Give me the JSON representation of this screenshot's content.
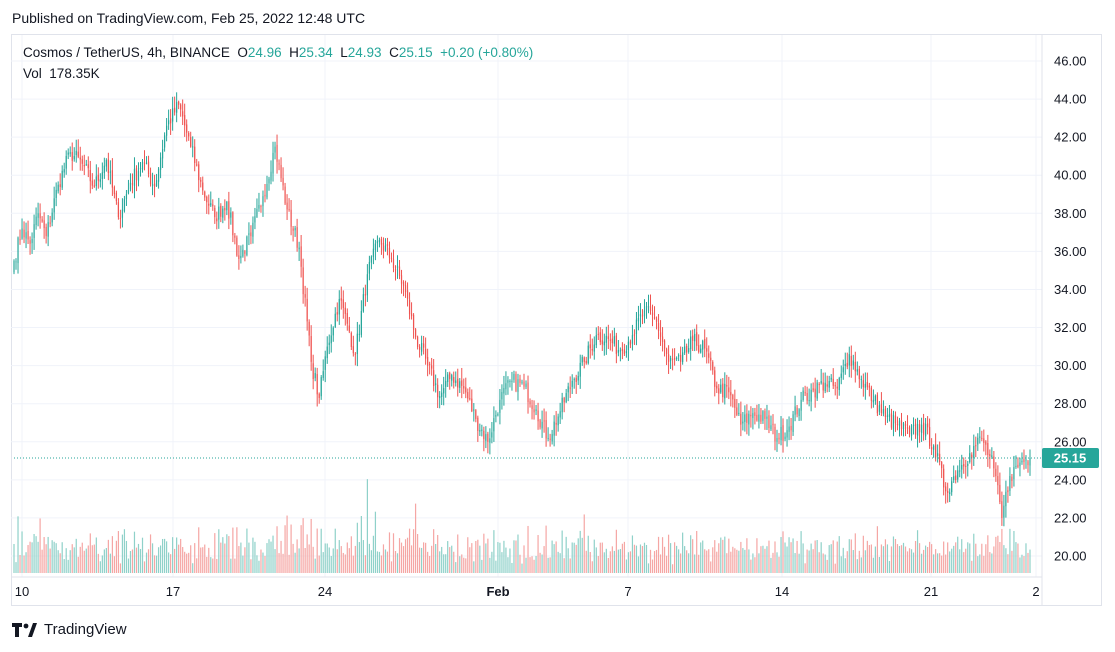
{
  "published": "Published on TradingView.com, Feb 25, 2022 12:48 UTC",
  "legend": {
    "symbol": "Cosmos / TetherUS, 4h, BINANCE",
    "o_label": "O",
    "o": "24.96",
    "h_label": "H",
    "h": "25.34",
    "l_label": "L",
    "l": "24.93",
    "c_label": "C",
    "c": "25.15",
    "change": "+0.20 (+0.80%)"
  },
  "volume": {
    "label": "Vol",
    "value": "178.35K"
  },
  "last_price": "25.15",
  "brand": "TradingView",
  "colors": {
    "up": "#26a69a",
    "down": "#ef5350",
    "up_vol": "#8fd1c9",
    "down_vol": "#f5a6a4"
  },
  "chart_data": {
    "type": "candlestick",
    "interval": "4h",
    "price_axis": {
      "ticks": [
        "46.00",
        "44.00",
        "42.00",
        "40.00",
        "38.00",
        "36.00",
        "34.00",
        "32.00",
        "30.00",
        "28.00",
        "26.00",
        "24.00",
        "22.00",
        "20.00"
      ],
      "range": [
        19,
        47
      ]
    },
    "time_axis": {
      "labels": [
        "10",
        "17",
        "24",
        "Feb",
        "7",
        "14",
        "21",
        "2"
      ]
    },
    "grid": true,
    "close_anchors": [
      [
        0,
        35.5
      ],
      [
        4,
        37.2
      ],
      [
        8,
        36.4
      ],
      [
        12,
        38.0
      ],
      [
        16,
        36.8
      ],
      [
        22,
        39.5
      ],
      [
        28,
        41.2
      ],
      [
        34,
        40.6
      ],
      [
        40,
        39.4
      ],
      [
        46,
        40.8
      ],
      [
        52,
        37.8
      ],
      [
        58,
        39.6
      ],
      [
        64,
        40.7
      ],
      [
        70,
        39.4
      ],
      [
        76,
        42.6
      ],
      [
        82,
        43.7
      ],
      [
        88,
        41.5
      ],
      [
        94,
        39.2
      ],
      [
        100,
        37.8
      ],
      [
        106,
        38.6
      ],
      [
        112,
        35.6
      ],
      [
        118,
        36.8
      ],
      [
        124,
        38.9
      ],
      [
        130,
        41.5
      ],
      [
        136,
        38.2
      ],
      [
        142,
        36.2
      ],
      [
        148,
        30.2
      ],
      [
        152,
        28.3
      ],
      [
        156,
        31.0
      ],
      [
        162,
        33.5
      ],
      [
        166,
        32.2
      ],
      [
        170,
        30.6
      ],
      [
        176,
        34.8
      ],
      [
        182,
        36.6
      ],
      [
        188,
        35.6
      ],
      [
        194,
        34.2
      ],
      [
        200,
        31.5
      ],
      [
        206,
        30.0
      ],
      [
        212,
        28.4
      ],
      [
        218,
        29.5
      ],
      [
        224,
        28.8
      ],
      [
        230,
        27.2
      ],
      [
        236,
        26.0
      ],
      [
        242,
        28.2
      ],
      [
        248,
        29.2
      ],
      [
        254,
        28.9
      ],
      [
        260,
        27.7
      ],
      [
        266,
        26.2
      ],
      [
        272,
        27.6
      ],
      [
        278,
        29.2
      ],
      [
        284,
        30.2
      ],
      [
        290,
        31.6
      ],
      [
        296,
        31.4
      ],
      [
        302,
        30.8
      ],
      [
        308,
        31.6
      ],
      [
        314,
        32.9
      ],
      [
        320,
        32.3
      ],
      [
        326,
        30.2
      ],
      [
        332,
        30.2
      ],
      [
        338,
        31.3
      ],
      [
        344,
        30.9
      ],
      [
        350,
        28.8
      ],
      [
        356,
        28.6
      ],
      [
        362,
        26.9
      ],
      [
        368,
        27.5
      ],
      [
        374,
        27.2
      ],
      [
        380,
        26.2
      ],
      [
        386,
        26.8
      ],
      [
        392,
        28.2
      ],
      [
        398,
        28.7
      ],
      [
        404,
        29.1
      ],
      [
        410,
        28.8
      ],
      [
        416,
        30.6
      ],
      [
        422,
        29.3
      ],
      [
        428,
        28.2
      ],
      [
        434,
        27.3
      ],
      [
        440,
        26.9
      ],
      [
        446,
        26.4
      ],
      [
        452,
        26.9
      ],
      [
        458,
        25.8
      ],
      [
        464,
        23.4
      ],
      [
        470,
        24.5
      ],
      [
        476,
        25.4
      ],
      [
        482,
        26.2
      ],
      [
        488,
        24.6
      ],
      [
        492,
        22.0
      ],
      [
        496,
        24.2
      ],
      [
        502,
        25.0
      ],
      [
        506,
        25.15
      ]
    ]
  }
}
